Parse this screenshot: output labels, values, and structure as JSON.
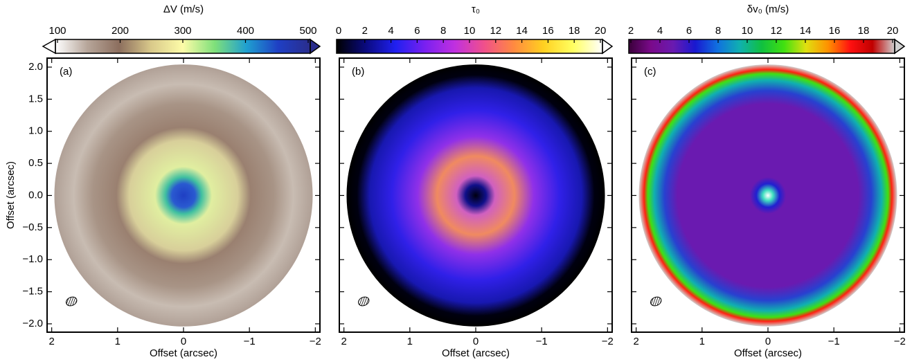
{
  "chart_data": [
    {
      "type": "map",
      "colorbar_label": "ΔV (m/s)",
      "panel_label": "(a)",
      "xlabel": "Offset (arcsec)",
      "ylabel": "Offset (arcsec)",
      "clim": [
        100,
        500
      ],
      "cticks": [
        100,
        200,
        300,
        400,
        500
      ],
      "extend": "both",
      "colormap": [
        "#ffffff",
        "#b7a69a",
        "#8c6e5e",
        "#d9c98a",
        "#fdfca8",
        "#7fe07a",
        "#1f9fd0",
        "#1f3fc4",
        "#2a2d8c"
      ],
      "xlim": [
        2.07,
        -2.07
      ],
      "ylim": [
        -2.13,
        2.14
      ],
      "xticks": [
        {
          "value": 2,
          "label": "2"
        },
        {
          "value": 1,
          "label": "1"
        },
        {
          "value": 0,
          "label": "0"
        },
        {
          "value": -1,
          "label": "−1"
        },
        {
          "value": -2,
          "label": "−2"
        }
      ],
      "yticks": [
        {
          "value": 2,
          "label": "2.0"
        },
        {
          "value": 1.5,
          "label": "1.5"
        },
        {
          "value": 1,
          "label": "1.0"
        },
        {
          "value": 0.5,
          "label": "0.5"
        },
        {
          "value": 0,
          "label": "0.0"
        },
        {
          "value": -0.5,
          "label": "−0.5"
        },
        {
          "value": -1,
          "label": "−1.0"
        },
        {
          "value": -1.5,
          "label": "−1.5"
        },
        {
          "value": -2,
          "label": "−2.0"
        }
      ]
    },
    {
      "type": "map",
      "colorbar_label": "τ₀",
      "panel_label": "(b)",
      "xlabel": "Offset (arcsec)",
      "clim": [
        0,
        20
      ],
      "cticks": [
        0,
        2,
        4,
        6,
        8,
        10,
        12,
        14,
        16,
        18,
        20
      ],
      "extend": "max",
      "colormap": [
        "#000000",
        "#0a0a80",
        "#2020f0",
        "#7a20f0",
        "#c030e0",
        "#f0508a",
        "#ff8a40",
        "#ffd020",
        "#ffff60",
        "#ffffff"
      ],
      "xlim": [
        2.07,
        -2.07
      ],
      "ylim": [
        -2.13,
        2.14
      ],
      "xticks": [
        {
          "value": 2,
          "label": "2"
        },
        {
          "value": 1,
          "label": "1"
        },
        {
          "value": 0,
          "label": "0"
        },
        {
          "value": -1,
          "label": "−1"
        },
        {
          "value": -2,
          "label": "−2"
        }
      ]
    },
    {
      "type": "map",
      "colorbar_label": "δv₀ (m/s)",
      "panel_label": "(c)",
      "xlabel": "Offset (arcsec)",
      "clim": [
        2,
        20
      ],
      "cticks": [
        2,
        4,
        6,
        8,
        10,
        12,
        14,
        16,
        18,
        20
      ],
      "extend": "max",
      "colormap": [
        "#3a003a",
        "#7a0a8a",
        "#6a1ab0",
        "#1818d0",
        "#1070e0",
        "#10b0b0",
        "#10c040",
        "#40e010",
        "#e0e010",
        "#ff9000",
        "#ff1010",
        "#c00000",
        "#d0d0d0"
      ],
      "xlim": [
        2.07,
        -2.07
      ],
      "ylim": [
        -2.13,
        2.14
      ],
      "xticks": [
        {
          "value": 2,
          "label": "2"
        },
        {
          "value": 1,
          "label": "1"
        },
        {
          "value": 0,
          "label": "0"
        },
        {
          "value": -1,
          "label": "−1"
        },
        {
          "value": -2,
          "label": "−2"
        }
      ]
    }
  ]
}
